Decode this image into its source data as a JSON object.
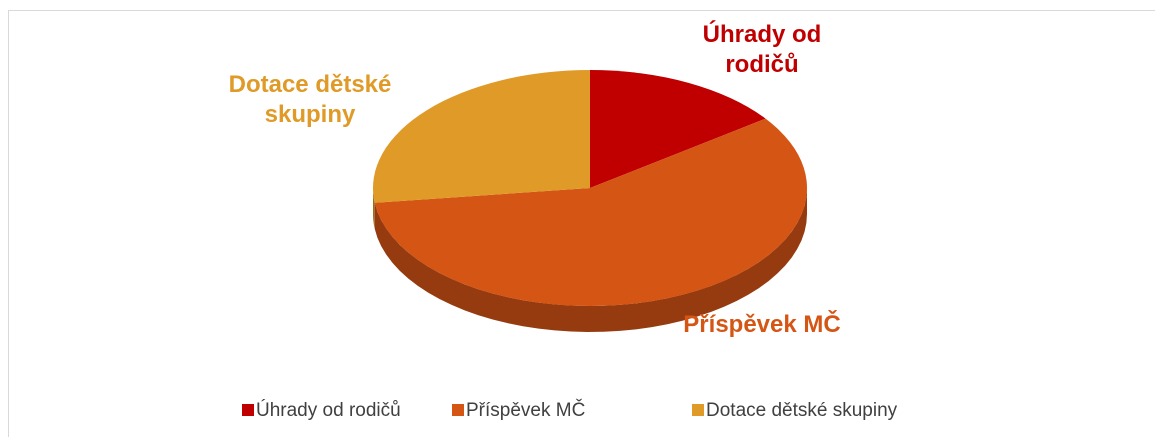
{
  "chart_data": {
    "type": "pie3d",
    "categories": [
      "Úhrady od rodičů",
      "Příspěvek MČ",
      "Dotace dětské skupiny"
    ],
    "values": [
      15,
      58,
      27
    ],
    "colors": [
      "#c00000",
      "#d55515",
      "#e09a27"
    ],
    "legend": "bottom"
  }
}
